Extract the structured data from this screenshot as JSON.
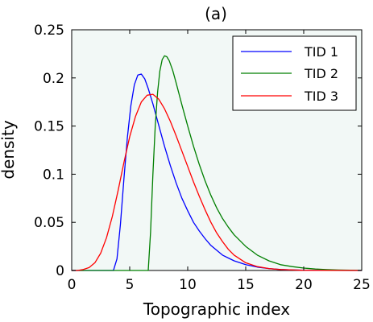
{
  "chart_data": {
    "type": "line",
    "title": "(a)",
    "xlabel": "Topographic index",
    "ylabel": "density",
    "xlim": [
      0,
      25
    ],
    "ylim": [
      0,
      0.25
    ],
    "x_ticks": [
      0,
      5,
      10,
      15,
      20,
      25
    ],
    "x_tick_labels": [
      "0",
      "5",
      "10",
      "15",
      "20",
      "25"
    ],
    "y_ticks": [
      0,
      0.05,
      0.1,
      0.15,
      0.2,
      0.25
    ],
    "y_tick_labels": [
      "0",
      "0.05",
      "0.1",
      "0.15",
      "0.2",
      "0.25"
    ],
    "grid": false,
    "legend_position": "top-right",
    "plot_background": "#f2f8f6",
    "series": [
      {
        "name": "TID 1",
        "color": "#0000ff",
        "x": [
          3.6,
          3.9,
          4.2,
          4.5,
          4.8,
          5.1,
          5.4,
          5.7,
          6.0,
          6.3,
          6.6,
          7.0,
          7.5,
          8.0,
          8.5,
          9.0,
          9.5,
          10.0,
          10.5,
          11.0,
          11.5,
          12.0,
          12.5,
          13.0,
          13.5,
          14.0,
          15.0,
          16.0,
          17.0,
          18.0,
          19.0,
          20.0,
          22.0,
          25.0
        ],
        "y": [
          0.0,
          0.012,
          0.048,
          0.095,
          0.138,
          0.171,
          0.193,
          0.203,
          0.204,
          0.199,
          0.189,
          0.173,
          0.151,
          0.129,
          0.109,
          0.091,
          0.075,
          0.062,
          0.05,
          0.041,
          0.033,
          0.026,
          0.021,
          0.016,
          0.013,
          0.01,
          0.006,
          0.0035,
          0.002,
          0.001,
          0.0006,
          0.0003,
          0.0001,
          0.0
        ]
      },
      {
        "name": "TID 2",
        "color": "#007f00",
        "x": [
          6.6,
          6.8,
          7.0,
          7.2,
          7.4,
          7.6,
          7.8,
          8.0,
          8.2,
          8.4,
          8.7,
          9.0,
          9.5,
          10.0,
          10.5,
          11.0,
          11.5,
          12.0,
          12.5,
          13.0,
          13.5,
          14.0,
          15.0,
          16.0,
          17.0,
          18.0,
          19.0,
          20.0,
          21.0,
          22.0,
          23.0,
          25.0
        ],
        "y": [
          0.0,
          0.04,
          0.1,
          0.15,
          0.185,
          0.207,
          0.219,
          0.223,
          0.222,
          0.218,
          0.208,
          0.195,
          0.172,
          0.15,
          0.129,
          0.11,
          0.093,
          0.078,
          0.065,
          0.054,
          0.045,
          0.037,
          0.025,
          0.016,
          0.01,
          0.006,
          0.004,
          0.0025,
          0.0015,
          0.0009,
          0.0005,
          0.0001
        ]
      },
      {
        "name": "TID 3",
        "color": "#ff0000",
        "x": [
          0.5,
          1.0,
          1.5,
          2.0,
          2.5,
          3.0,
          3.5,
          4.0,
          4.5,
          5.0,
          5.5,
          6.0,
          6.5,
          7.0,
          7.5,
          8.0,
          8.5,
          9.0,
          9.5,
          10.0,
          10.5,
          11.0,
          11.5,
          12.0,
          12.5,
          13.0,
          13.5,
          14.0,
          15.0,
          16.0,
          17.0,
          18.0,
          20.0,
          25.0
        ],
        "y": [
          0.0,
          0.001,
          0.003,
          0.008,
          0.018,
          0.034,
          0.056,
          0.083,
          0.112,
          0.139,
          0.16,
          0.175,
          0.182,
          0.183,
          0.178,
          0.168,
          0.155,
          0.14,
          0.124,
          0.108,
          0.092,
          0.077,
          0.063,
          0.05,
          0.039,
          0.03,
          0.022,
          0.016,
          0.008,
          0.004,
          0.002,
          0.001,
          0.0002,
          0.0
        ]
      }
    ]
  }
}
